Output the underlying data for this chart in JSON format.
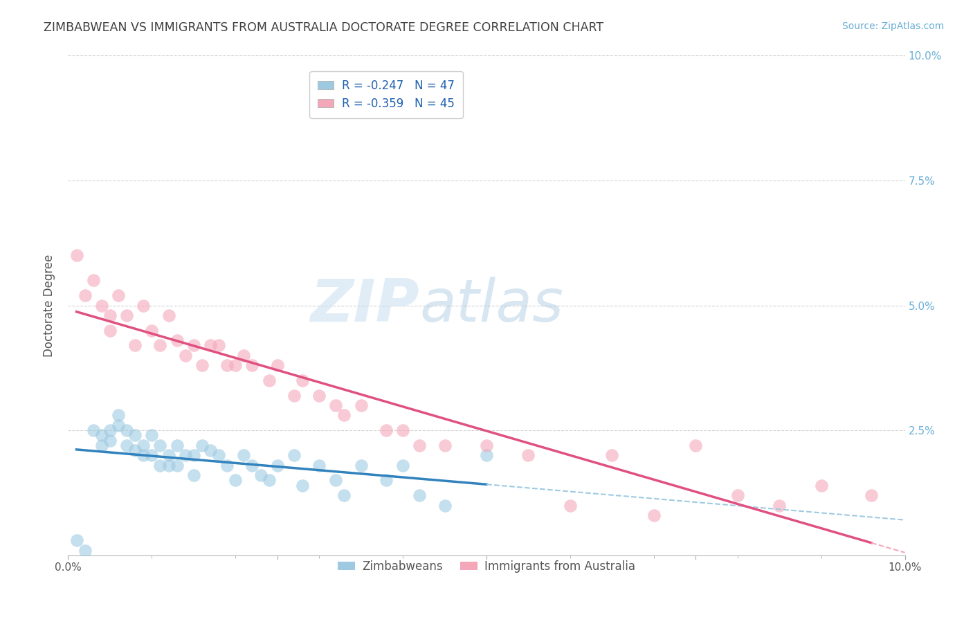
{
  "title": "ZIMBABWEAN VS IMMIGRANTS FROM AUSTRALIA DOCTORATE DEGREE CORRELATION CHART",
  "source": "Source: ZipAtlas.com",
  "ylabel": "Doctorate Degree",
  "xlim": [
    0.0,
    0.1
  ],
  "ylim": [
    0.0,
    0.1
  ],
  "xtick_vals": [
    0.0,
    0.025,
    0.05,
    0.075,
    0.1
  ],
  "ytick_vals": [
    0.0,
    0.025,
    0.05,
    0.075,
    0.1
  ],
  "right_ytick_labels": [
    "",
    "2.5%",
    "5.0%",
    "7.5%",
    "10.0%"
  ],
  "legend_r1": "R = -0.247",
  "legend_n1": "N = 47",
  "legend_r2": "R = -0.359",
  "legend_n2": "N = 45",
  "color_blue": "#9ecae1",
  "color_pink": "#f4a7b9",
  "line_blue": "#3182bd",
  "line_pink": "#e05080",
  "background_color": "#ffffff",
  "grid_color": "#d0d0d0",
  "title_color": "#404040",
  "source_color": "#6aaed6",
  "legend_color": "#2060b0",
  "zimbabweans_x": [
    0.001,
    0.002,
    0.003,
    0.004,
    0.004,
    0.005,
    0.005,
    0.006,
    0.006,
    0.007,
    0.007,
    0.008,
    0.008,
    0.009,
    0.009,
    0.01,
    0.01,
    0.011,
    0.011,
    0.012,
    0.012,
    0.013,
    0.013,
    0.014,
    0.015,
    0.015,
    0.016,
    0.017,
    0.018,
    0.019,
    0.02,
    0.021,
    0.022,
    0.023,
    0.024,
    0.025,
    0.027,
    0.028,
    0.03,
    0.032,
    0.033,
    0.035,
    0.038,
    0.04,
    0.042,
    0.045,
    0.05
  ],
  "zimbabweans_y": [
    0.003,
    0.001,
    0.025,
    0.022,
    0.024,
    0.025,
    0.023,
    0.028,
    0.026,
    0.025,
    0.022,
    0.024,
    0.021,
    0.022,
    0.02,
    0.024,
    0.02,
    0.022,
    0.018,
    0.02,
    0.018,
    0.022,
    0.018,
    0.02,
    0.02,
    0.016,
    0.022,
    0.021,
    0.02,
    0.018,
    0.015,
    0.02,
    0.018,
    0.016,
    0.015,
    0.018,
    0.02,
    0.014,
    0.018,
    0.015,
    0.012,
    0.018,
    0.015,
    0.018,
    0.012,
    0.01,
    0.02
  ],
  "australians_x": [
    0.001,
    0.002,
    0.003,
    0.004,
    0.005,
    0.005,
    0.006,
    0.007,
    0.008,
    0.009,
    0.01,
    0.011,
    0.012,
    0.013,
    0.014,
    0.015,
    0.016,
    0.017,
    0.018,
    0.019,
    0.02,
    0.021,
    0.022,
    0.024,
    0.025,
    0.027,
    0.028,
    0.03,
    0.032,
    0.033,
    0.035,
    0.038,
    0.04,
    0.042,
    0.045,
    0.05,
    0.055,
    0.06,
    0.065,
    0.07,
    0.075,
    0.08,
    0.085,
    0.09,
    0.096
  ],
  "australians_y": [
    0.06,
    0.052,
    0.055,
    0.05,
    0.048,
    0.045,
    0.052,
    0.048,
    0.042,
    0.05,
    0.045,
    0.042,
    0.048,
    0.043,
    0.04,
    0.042,
    0.038,
    0.042,
    0.042,
    0.038,
    0.038,
    0.04,
    0.038,
    0.035,
    0.038,
    0.032,
    0.035,
    0.032,
    0.03,
    0.028,
    0.03,
    0.025,
    0.025,
    0.022,
    0.022,
    0.022,
    0.02,
    0.01,
    0.02,
    0.008,
    0.022,
    0.012,
    0.01,
    0.014,
    0.012
  ]
}
